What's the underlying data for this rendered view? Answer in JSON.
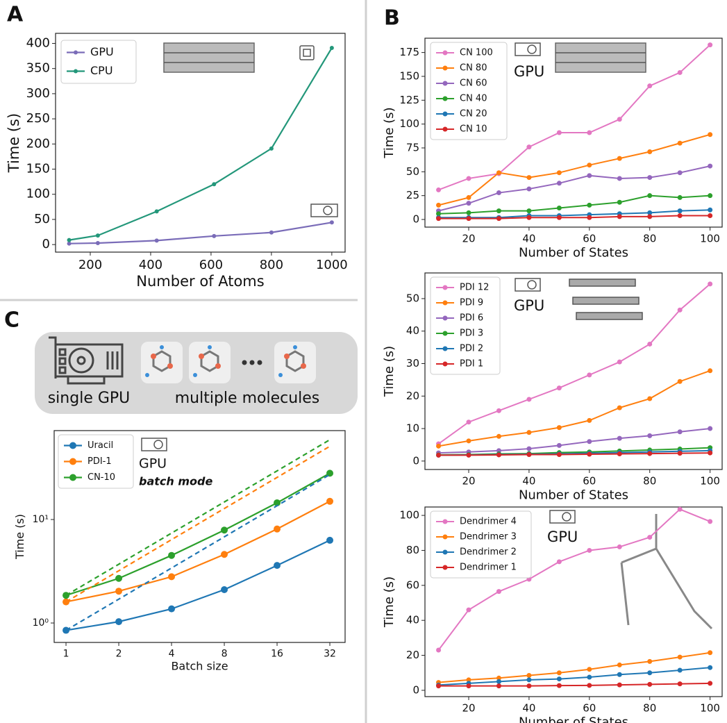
{
  "panel_labels": [
    "A",
    "B",
    "C"
  ],
  "infographic": {
    "left": "single GPU",
    "right": "multiple molecules"
  },
  "chart_data": [
    {
      "type": "line",
      "xlabel": "Number of Atoms",
      "ylabel": "Time (s)",
      "x": [
        130,
        225,
        420,
        610,
        800,
        1000
      ],
      "series": [
        {
          "name": "GPU",
          "color": "#7a6cb8",
          "values": [
            2,
            3,
            8,
            17,
            24,
            44
          ]
        },
        {
          "name": "CPU",
          "color": "#23977a",
          "values": [
            9,
            18,
            66,
            120,
            191,
            391
          ]
        }
      ],
      "xlim": [
        85,
        1044
      ],
      "ylim": [
        -15,
        420
      ],
      "xticks": [
        200,
        400,
        600,
        800,
        1000
      ],
      "yticks": [
        0,
        50,
        100,
        150,
        200,
        250,
        300,
        350,
        400
      ],
      "legend": "upper left",
      "grid": false
    },
    {
      "type": "line",
      "xlabel": "Number of States",
      "ylabel": "Time (s)",
      "x": [
        10,
        20,
        30,
        40,
        50,
        60,
        70,
        80,
        90,
        100
      ],
      "series": [
        {
          "name": "CN 100",
          "color": "#e377c2",
          "values": [
            31,
            43,
            48,
            76,
            91,
            91,
            105,
            140,
            154,
            183
          ]
        },
        {
          "name": "CN 80",
          "color": "#ff7f0e",
          "values": [
            15,
            23,
            49,
            44,
            49,
            57,
            64,
            71,
            80,
            89
          ]
        },
        {
          "name": "CN 60",
          "color": "#9467bd",
          "values": [
            9,
            17,
            28,
            32,
            38,
            46,
            43,
            44,
            49,
            56
          ]
        },
        {
          "name": "CN 40",
          "color": "#2ca02c",
          "values": [
            6,
            7,
            9,
            9,
            12,
            15,
            18,
            25,
            23,
            25
          ]
        },
        {
          "name": "CN 20",
          "color": "#1f77b4",
          "values": [
            2,
            2,
            2,
            4,
            4,
            5,
            6,
            7,
            9,
            10
          ]
        },
        {
          "name": "CN 10",
          "color": "#d62728",
          "values": [
            1,
            1,
            1,
            2,
            2,
            2,
            3,
            3,
            4,
            4
          ]
        }
      ],
      "annotations": [
        {
          "text": "GPU"
        }
      ],
      "xlim": [
        5.5,
        104
      ],
      "ylim": [
        -8,
        190
      ],
      "xticks": [
        20,
        40,
        60,
        80,
        100
      ],
      "yticks": [
        0,
        25,
        50,
        75,
        100,
        125,
        150,
        175
      ],
      "legend": "upper left",
      "grid": false
    },
    {
      "type": "line",
      "xlabel": "Number of States",
      "ylabel": "Time (s)",
      "x": [
        10,
        20,
        30,
        40,
        50,
        60,
        70,
        80,
        90,
        100
      ],
      "series": [
        {
          "name": "PDI 12",
          "color": "#e377c2",
          "values": [
            5.3,
            12,
            15.5,
            19,
            22.5,
            26.5,
            30.5,
            36,
            46.5,
            54.5
          ]
        },
        {
          "name": "PDI 9",
          "color": "#ff7f0e",
          "values": [
            4.6,
            6.2,
            7.6,
            8.8,
            10.3,
            12.5,
            16.4,
            19.2,
            24.5,
            27.8
          ]
        },
        {
          "name": "PDI 6",
          "color": "#9467bd",
          "values": [
            2.5,
            2.8,
            3.2,
            3.8,
            4.8,
            6,
            7,
            7.8,
            9,
            10
          ]
        },
        {
          "name": "PDI 3",
          "color": "#2ca02c",
          "values": [
            1.9,
            2,
            2.2,
            2.3,
            2.6,
            2.8,
            3.1,
            3.4,
            3.7,
            4.1
          ]
        },
        {
          "name": "PDI 2",
          "color": "#1f77b4",
          "values": [
            1.8,
            1.9,
            2,
            2.1,
            2.2,
            2.4,
            2.6,
            2.8,
            3,
            3.2
          ]
        },
        {
          "name": "PDI 1",
          "color": "#d62728",
          "values": [
            1.8,
            1.8,
            1.9,
            2,
            2,
            2.1,
            2.2,
            2.3,
            2.4,
            2.5
          ]
        }
      ],
      "annotations": [
        {
          "text": "GPU"
        }
      ],
      "xlim": [
        5.5,
        104
      ],
      "ylim": [
        -2.6,
        57.9
      ],
      "xticks": [
        20,
        40,
        60,
        80,
        100
      ],
      "yticks": [
        0,
        10,
        20,
        30,
        40,
        50
      ],
      "legend": "upper left",
      "grid": false
    },
    {
      "type": "line",
      "xlabel": "Number of States",
      "ylabel": "Time (s)",
      "x": [
        10,
        20,
        30,
        40,
        50,
        60,
        70,
        80,
        90,
        100
      ],
      "series": [
        {
          "name": "Dendrimer 4",
          "color": "#e377c2",
          "values": [
            23,
            46,
            56.5,
            63.5,
            73.5,
            80,
            82,
            87.5,
            103.5,
            96.5
          ]
        },
        {
          "name": "Dendrimer 3",
          "color": "#ff7f0e",
          "values": [
            4.5,
            6,
            7,
            8.5,
            10,
            12,
            14.5,
            16.5,
            19,
            21.5
          ]
        },
        {
          "name": "Dendrimer 2",
          "color": "#1f77b4",
          "values": [
            3,
            4,
            5,
            6,
            6.5,
            7.5,
            9,
            10,
            11.5,
            13
          ]
        },
        {
          "name": "Dendrimer 1",
          "color": "#d62728",
          "values": [
            2.5,
            2.5,
            2.5,
            2.5,
            2.7,
            2.8,
            3.1,
            3.4,
            3.7,
            4
          ]
        }
      ],
      "annotations": [
        {
          "text": "GPU"
        }
      ],
      "xlim": [
        5.5,
        104
      ],
      "ylim": [
        -3.6,
        104.8
      ],
      "xticks": [
        20,
        40,
        60,
        80,
        100
      ],
      "yticks": [
        0,
        20,
        40,
        60,
        80,
        100
      ],
      "legend": "upper left",
      "grid": false
    },
    {
      "type": "line",
      "xlabel": "Batch size",
      "ylabel": "Time (s)",
      "x": [
        1,
        2,
        4,
        8,
        16,
        32
      ],
      "xscale": "log",
      "yscale": "log",
      "series": [
        {
          "name": "Uracil",
          "color": "#1f77b4",
          "values": [
            0.85,
            1.03,
            1.37,
            2.1,
            3.6,
            6.3
          ]
        },
        {
          "name": "PDI-1",
          "color": "#ff7f0e",
          "values": [
            1.6,
            2.03,
            2.8,
            4.6,
            8.1,
            15
          ]
        },
        {
          "name": "CN-10",
          "color": "#2ca02c",
          "values": [
            1.85,
            2.7,
            4.5,
            7.9,
            14.5,
            28
          ]
        },
        {
          "color": "#1f77b4",
          "linestyle": "dashed",
          "x": [
            1,
            32
          ],
          "values": [
            0.85,
            27.2
          ]
        },
        {
          "color": "#ff7f0e",
          "linestyle": "dashed",
          "x": [
            1,
            32
          ],
          "values": [
            1.6,
            51
          ]
        },
        {
          "color": "#2ca02c",
          "linestyle": "dashed",
          "x": [
            1,
            32
          ],
          "values": [
            1.85,
            59
          ]
        }
      ],
      "annotations": [
        {
          "text": "GPU"
        },
        {
          "text": "batch mode",
          "style": "italic bold"
        }
      ],
      "xlim": [
        0.856,
        39.1
      ],
      "ylim": [
        0.649,
        72.3
      ],
      "xticks": [
        1,
        2,
        4,
        8,
        16,
        32
      ],
      "yticks": [
        {
          "value": 1,
          "label": "10⁰"
        },
        {
          "value": 10,
          "label": "10¹"
        }
      ],
      "legend": "upper left",
      "grid": false
    }
  ]
}
